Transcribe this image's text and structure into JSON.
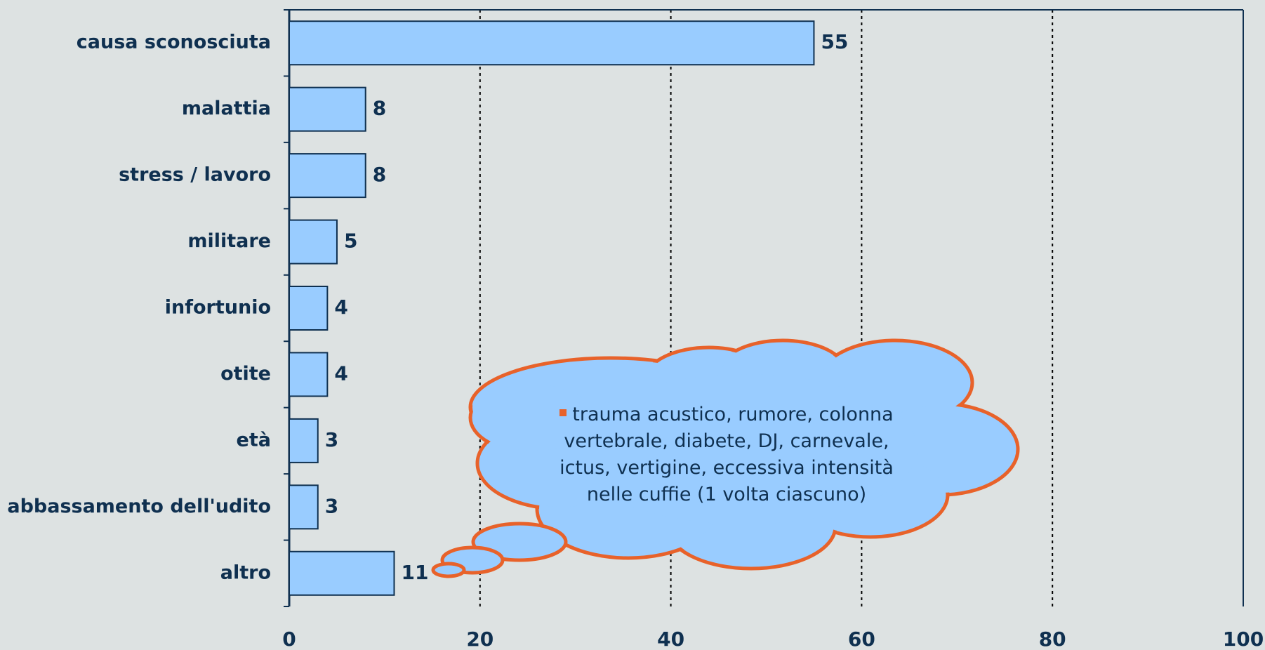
{
  "chart_data": {
    "type": "hbar",
    "categories": [
      "causa sconosciuta",
      "malattia",
      "stress / lavoro",
      "militare",
      "infortunio",
      "otite",
      "età",
      "abbassamento dell'udito",
      "altro"
    ],
    "values": [
      55,
      8,
      8,
      5,
      4,
      4,
      3,
      3,
      11
    ],
    "color": "#99ccff",
    "xlim": [
      0,
      100
    ],
    "xticks": [
      0,
      20,
      40,
      60,
      80,
      100
    ],
    "grid": true,
    "annotation": "trauma acustico, rumore, colonna vertebrale, diabete, DJ, carnevale, ictus, vertigine, eccessiva intensità nelle cuffie (1 volta ciascuno)"
  }
}
